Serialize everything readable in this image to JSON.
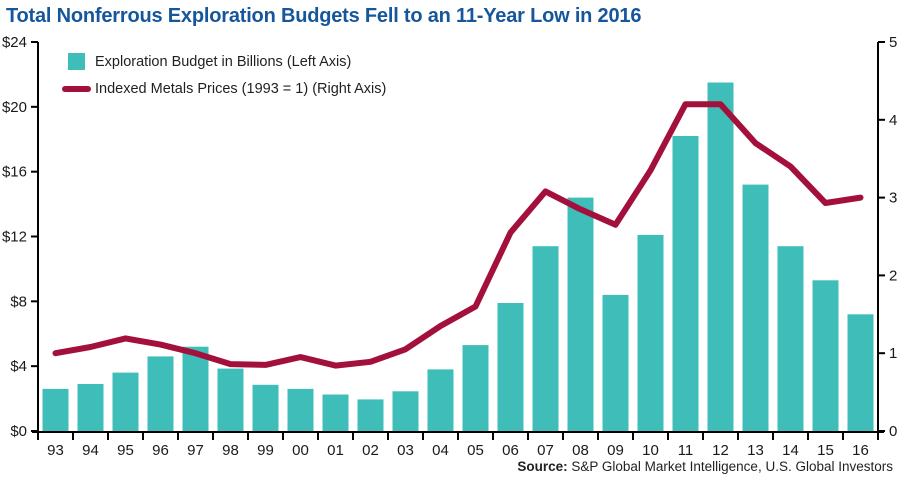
{
  "title": "Total Nonferrous Exploration Budgets Fell to an 11-Year Low in 2016",
  "legend": {
    "bar_label": "Exploration Budget in Billions (Left Axis)",
    "line_label": "Indexed Metals Prices (1993 = 1) (Right Axis)"
  },
  "source": {
    "label": "Source:",
    "text": " S&P Global Market Intelligence, U.S. Global Investors"
  },
  "colors": {
    "bar": "#3fbeb9",
    "line": "#a4103c",
    "title": "#16569a",
    "axis": "#000000",
    "tick_label": "#1a1a1a"
  },
  "chart_data": {
    "type": "bar",
    "subtype": "bar+line combo",
    "title": "Total Nonferrous Exploration Budgets Fell to an 11-Year Low in 2016",
    "categories": [
      "93",
      "94",
      "95",
      "96",
      "97",
      "98",
      "99",
      "00",
      "01",
      "02",
      "03",
      "04",
      "05",
      "06",
      "07",
      "08",
      "09",
      "10",
      "11",
      "12",
      "13",
      "14",
      "15",
      "16"
    ],
    "series": [
      {
        "name": "Exploration Budget in Billions (Left Axis)",
        "type": "bar",
        "axis": "left",
        "color": "#3fbeb9",
        "values": [
          2.6,
          2.9,
          3.6,
          4.6,
          5.2,
          3.85,
          2.85,
          2.6,
          2.25,
          1.95,
          2.45,
          3.8,
          5.3,
          7.9,
          11.4,
          14.4,
          8.4,
          12.1,
          18.2,
          21.5,
          15.2,
          11.4,
          9.3,
          7.2
        ]
      },
      {
        "name": "Indexed Metals Prices (1993 = 1) (Right Axis)",
        "type": "line",
        "axis": "right",
        "color": "#a4103c",
        "values": [
          1.0,
          1.08,
          1.19,
          1.11,
          1.0,
          0.86,
          0.85,
          0.95,
          0.84,
          0.89,
          1.05,
          1.35,
          1.6,
          2.55,
          3.08,
          2.85,
          2.65,
          3.35,
          4.2,
          4.2,
          3.7,
          3.4,
          2.93,
          3.0
        ]
      }
    ],
    "left_axis": {
      "label": "Exploration Budget in Billions",
      "min": 0,
      "max": 24,
      "tick_values": [
        0,
        4,
        8,
        12,
        16,
        20,
        24
      ],
      "tick_labels": [
        "$0",
        "$4",
        "$8",
        "$12",
        "$16",
        "$20",
        "$24"
      ]
    },
    "right_axis": {
      "label": "Indexed Metals Prices (1993 = 1)",
      "min": 0,
      "max": 5,
      "tick_values": [
        0,
        1,
        2,
        3,
        4,
        5
      ],
      "tick_labels": [
        "0",
        "1",
        "2",
        "3",
        "4",
        "5"
      ]
    },
    "grid": false,
    "legend_position": "top-left inside plot"
  }
}
